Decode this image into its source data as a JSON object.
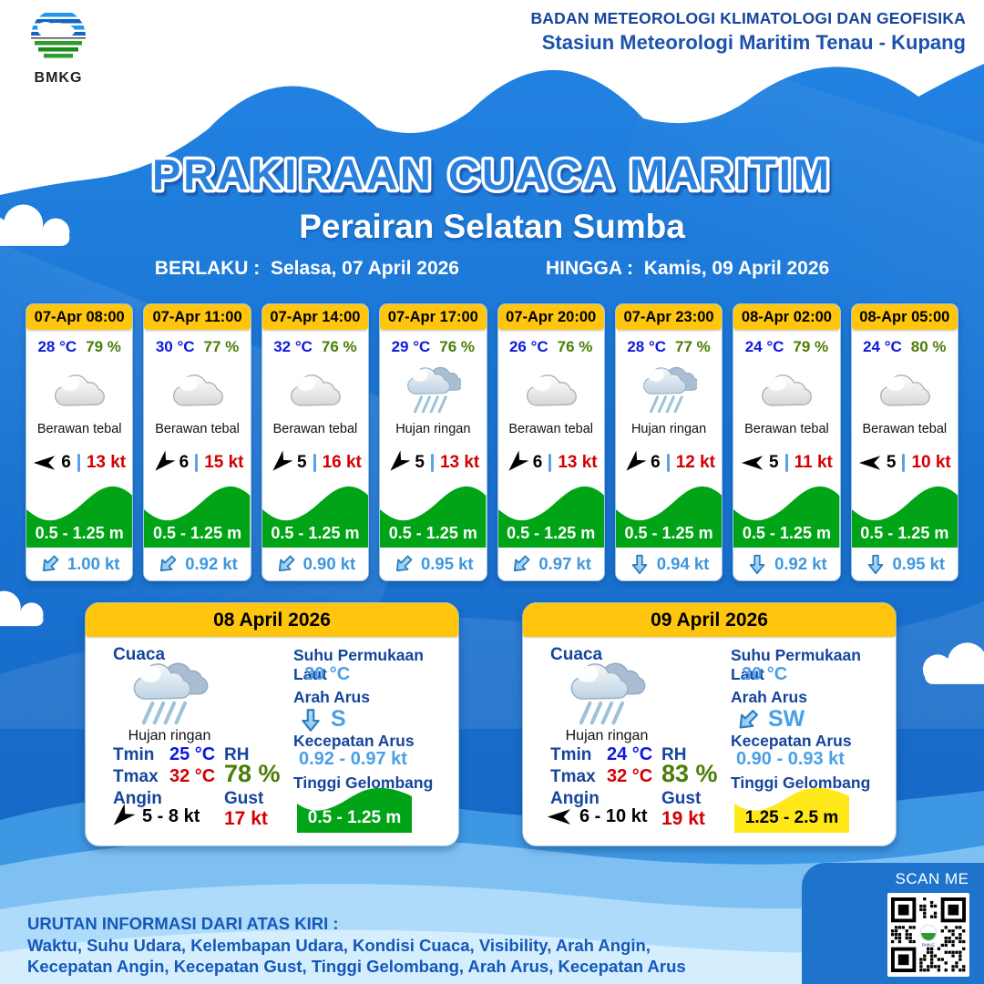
{
  "colors": {
    "accent_yellow": "#ffc60d",
    "wave_green": "#00a416",
    "wave_yellow": "#ffe818",
    "temp_blue": "#0d18e0",
    "humidity_green": "#4a7d05",
    "gust_red": "#d40000",
    "current_blue": "#3e97de",
    "label_navy": "#16459c",
    "background_blue": "#1a74d2"
  },
  "header": {
    "logo_text": "BMKG",
    "org_line1": "BADAN METEOROLOGI KLIMATOLOGI DAN GEOFISIKA",
    "org_line2": "Stasiun Meteorologi Maritim Tenau - Kupang"
  },
  "title": {
    "main": "PRAKIRAAN CUACA MARITIM",
    "area": "Perairan Selatan Sumba",
    "valid_from_label": "BERLAKU :",
    "valid_from_value": "Selasa, 07 April 2026",
    "valid_to_label": "HINGGA :",
    "valid_to_value": "Kamis, 09 April 2026"
  },
  "hourly_cards": [
    {
      "time": "07-Apr 08:00",
      "temp": "28 °C",
      "humidity": "79 %",
      "condition": "Berawan tebal",
      "icon": "cloudy",
      "wind_dir": "W",
      "wind_speed": "6",
      "gust": "13 kt",
      "wave_height": "0.5 - 1.25 m",
      "current_dir": "SW",
      "current_speed": "1.00 kt"
    },
    {
      "time": "07-Apr 11:00",
      "temp": "30 °C",
      "humidity": "77 %",
      "condition": "Berawan tebal",
      "icon": "cloudy",
      "wind_dir": "SW",
      "wind_speed": "6",
      "gust": "15 kt",
      "wave_height": "0.5 - 1.25 m",
      "current_dir": "SW",
      "current_speed": "0.92 kt"
    },
    {
      "time": "07-Apr 14:00",
      "temp": "32 °C",
      "humidity": "76 %",
      "condition": "Berawan tebal",
      "icon": "cloudy",
      "wind_dir": "SW",
      "wind_speed": "5",
      "gust": "16 kt",
      "wave_height": "0.5 - 1.25 m",
      "current_dir": "SW",
      "current_speed": "0.90 kt"
    },
    {
      "time": "07-Apr 17:00",
      "temp": "29 °C",
      "humidity": "76 %",
      "condition": "Hujan ringan",
      "icon": "light-rain",
      "wind_dir": "SW",
      "wind_speed": "5",
      "gust": "13 kt",
      "wave_height": "0.5 - 1.25 m",
      "current_dir": "SW",
      "current_speed": "0.95 kt"
    },
    {
      "time": "07-Apr 20:00",
      "temp": "26 °C",
      "humidity": "76 %",
      "condition": "Berawan tebal",
      "icon": "cloudy",
      "wind_dir": "SW",
      "wind_speed": "6",
      "gust": "13 kt",
      "wave_height": "0.5 - 1.25 m",
      "current_dir": "SW",
      "current_speed": "0.97 kt"
    },
    {
      "time": "07-Apr 23:00",
      "temp": "28 °C",
      "humidity": "77 %",
      "condition": "Hujan ringan",
      "icon": "light-rain",
      "wind_dir": "SW",
      "wind_speed": "6",
      "gust": "12 kt",
      "wave_height": "0.5 - 1.25 m",
      "current_dir": "S",
      "current_speed": "0.94 kt"
    },
    {
      "time": "08-Apr 02:00",
      "temp": "24 °C",
      "humidity": "79 %",
      "condition": "Berawan tebal",
      "icon": "cloudy",
      "wind_dir": "W",
      "wind_speed": "5",
      "gust": "11 kt",
      "wave_height": "0.5 - 1.25 m",
      "current_dir": "S",
      "current_speed": "0.92 kt"
    },
    {
      "time": "08-Apr 05:00",
      "temp": "24 °C",
      "humidity": "80 %",
      "condition": "Berawan tebal",
      "icon": "cloudy",
      "wind_dir": "W",
      "wind_speed": "5",
      "gust": "10 kt",
      "wave_height": "0.5 - 1.25 m",
      "current_dir": "S",
      "current_speed": "0.95 kt"
    }
  ],
  "daily_labels": {
    "cuaca": "Cuaca",
    "tmin": "Tmin",
    "tmax": "Tmax",
    "angin": "Angin",
    "rh": "RH",
    "gust": "Gust",
    "sst": "Suhu Permukaan Laut",
    "arah_arus": "Arah Arus",
    "kecepatan_arus": "Kecepatan Arus",
    "tinggi_gelombang": "Tinggi Gelombang"
  },
  "daily_cards": [
    {
      "date": "08 April 2026",
      "condition": "Hujan ringan",
      "icon": "light-rain",
      "tmin": "25 °C",
      "tmax": "32 °C",
      "wind_dir": "SW",
      "wind_range": "5 - 8 kt",
      "rh": "78 %",
      "gust": "17 kt",
      "sst": "30 °C",
      "current_dir": "S",
      "current_dir_label": "S",
      "current_speed": "0.92 - 0.97 kt",
      "wave_height": "0.5 - 1.25 m",
      "wave_level": "green"
    },
    {
      "date": "09 April 2026",
      "condition": "Hujan ringan",
      "icon": "light-rain",
      "tmin": "24 °C",
      "tmax": "32 °C",
      "wind_dir": "W",
      "wind_range": "6 - 10 kt",
      "rh": "83 %",
      "gust": "19 kt",
      "sst": "30 °C",
      "current_dir": "SW",
      "current_dir_label": "SW",
      "current_speed": "0.90 - 0.93 kt",
      "wave_height": "1.25 - 2.5 m",
      "wave_level": "yellow"
    }
  ],
  "footer": {
    "line1": "URUTAN INFORMASI DARI ATAS KIRI :",
    "line2": "Waktu, Suhu Udara, Kelembapan Udara, Kondisi Cuaca, Visibility, Arah Angin,",
    "line3": "Kecepatan Angin, Kecepatan Gust, Tinggi Gelombang, Arah Arus, Kecepatan Arus",
    "scan_me": "SCAN ME"
  }
}
